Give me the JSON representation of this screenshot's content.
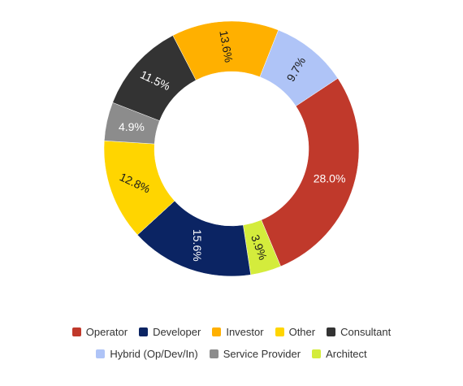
{
  "chart_data": {
    "type": "pie",
    "donut": true,
    "categories": [
      "Operator",
      "Architect",
      "Developer",
      "Other",
      "Service Provider",
      "Consultant",
      "Investor",
      "Hybrid (Op/Dev/In)"
    ],
    "values": [
      28.0,
      3.9,
      15.6,
      12.8,
      4.9,
      11.5,
      13.6,
      9.7
    ],
    "data_labels": [
      "28.0%",
      "3.9%",
      "15.6%",
      "12.8%",
      "4.9%",
      "11.5%",
      "13.6%",
      "9.7%"
    ],
    "colors": [
      "#C0392B",
      "#D4EC3C",
      "#0B2463",
      "#FFD500",
      "#8C8C8C",
      "#333333",
      "#FFB000",
      "#AFC4F7"
    ],
    "label_text_colors": [
      "#ffffff",
      "#1a1a1a",
      "#ffffff",
      "#1a1a1a",
      "#ffffff",
      "#ffffff",
      "#1a1a1a",
      "#1a1a1a"
    ],
    "title": "",
    "legend_placement": "bottom",
    "legend_rows": [
      [
        "Operator",
        "Developer",
        "Investor",
        "Other",
        "Consultant"
      ],
      [
        "Hybrid (Op/Dev/In)",
        "Service Provider",
        "Architect"
      ]
    ]
  }
}
